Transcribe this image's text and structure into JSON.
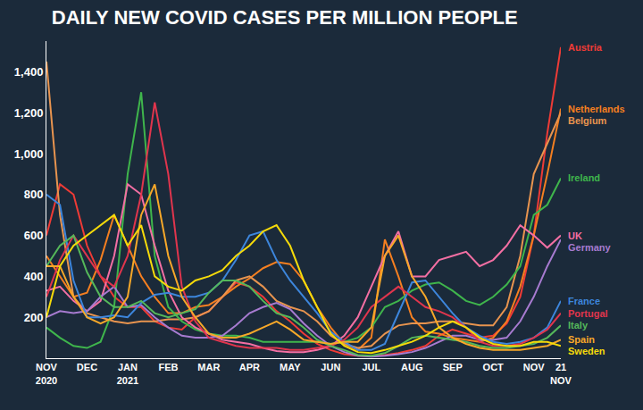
{
  "chart_data": {
    "type": "line",
    "title": "DAILY NEW COVID CASES PER MILLION PEOPLE",
    "categories": [
      "NOV 2020",
      null,
      null,
      "DEC",
      null,
      null,
      "JAN 2021",
      null,
      null,
      "FEB",
      null,
      null,
      "MAR",
      null,
      null,
      "APR",
      null,
      null,
      "MAY",
      null,
      null,
      "JUN",
      null,
      null,
      "JUL",
      null,
      null,
      "AUG",
      null,
      null,
      "SEP",
      null,
      null,
      "OCT",
      null,
      null,
      "NOV",
      null,
      "21 NOV"
    ],
    "series": [
      {
        "name": "Austria",
        "color": "#ef3b36",
        "values": [
          600,
          850,
          800,
          550,
          400,
          300,
          250,
          250,
          180,
          150,
          140,
          200,
          230,
          300,
          370,
          350,
          300,
          230,
          180,
          120,
          70,
          40,
          20,
          12,
          10,
          15,
          25,
          40,
          60,
          110,
          140,
          120,
          100,
          110,
          170,
          300,
          600,
          1100,
          1520
        ]
      },
      {
        "name": "Netherlands",
        "color": "#f57f20",
        "values": [
          500,
          400,
          300,
          320,
          480,
          700,
          550,
          400,
          300,
          220,
          220,
          250,
          260,
          300,
          350,
          390,
          440,
          470,
          460,
          380,
          250,
          150,
          70,
          40,
          100,
          580,
          400,
          200,
          130,
          120,
          100,
          90,
          80,
          100,
          180,
          350,
          600,
          900,
          1220
        ]
      },
      {
        "name": "Belgium",
        "color": "#e8944f",
        "values": [
          1450,
          700,
          300,
          220,
          200,
          180,
          170,
          180,
          180,
          190,
          190,
          200,
          230,
          300,
          380,
          400,
          350,
          280,
          250,
          230,
          180,
          110,
          70,
          50,
          60,
          120,
          160,
          170,
          170,
          180,
          180,
          170,
          160,
          160,
          250,
          500,
          900,
          1050,
          1200
        ]
      },
      {
        "name": "Ireland",
        "color": "#3fb54c",
        "values": [
          150,
          100,
          60,
          50,
          80,
          250,
          900,
          1300,
          500,
          250,
          180,
          140,
          120,
          110,
          110,
          100,
          80,
          80,
          80,
          80,
          80,
          70,
          80,
          100,
          150,
          250,
          280,
          330,
          360,
          370,
          330,
          280,
          260,
          300,
          360,
          450,
          700,
          750,
          880
        ]
      },
      {
        "name": "UK",
        "color": "#f36fa3",
        "values": [
          330,
          350,
          280,
          230,
          280,
          500,
          850,
          800,
          550,
          330,
          200,
          150,
          120,
          90,
          80,
          70,
          50,
          35,
          30,
          30,
          40,
          60,
          110,
          200,
          350,
          500,
          620,
          400,
          400,
          480,
          500,
          520,
          450,
          480,
          550,
          650,
          600,
          540,
          600
        ]
      },
      {
        "name": "Germany",
        "color": "#a77bd0",
        "values": [
          200,
          230,
          220,
          230,
          300,
          350,
          250,
          260,
          200,
          150,
          110,
          100,
          100,
          110,
          160,
          220,
          250,
          270,
          240,
          170,
          110,
          60,
          30,
          12,
          8,
          12,
          20,
          30,
          50,
          80,
          110,
          110,
          90,
          90,
          100,
          180,
          300,
          450,
          580
        ]
      },
      {
        "name": "France",
        "color": "#3d86dc",
        "values": [
          800,
          750,
          380,
          200,
          200,
          210,
          200,
          270,
          310,
          320,
          300,
          300,
          320,
          380,
          480,
          600,
          620,
          480,
          380,
          300,
          220,
          130,
          80,
          40,
          40,
          70,
          220,
          370,
          380,
          300,
          220,
          150,
          110,
          80,
          70,
          80,
          100,
          150,
          280
        ]
      },
      {
        "name": "Portugal",
        "color": "#e0354d",
        "values": [
          300,
          480,
          600,
          500,
          400,
          350,
          500,
          800,
          1250,
          900,
          350,
          180,
          100,
          80,
          60,
          50,
          50,
          50,
          40,
          40,
          50,
          60,
          90,
          150,
          250,
          300,
          350,
          300,
          250,
          230,
          200,
          150,
          80,
          60,
          60,
          70,
          100,
          140,
          220
        ]
      },
      {
        "name": "Italy",
        "color": "#55b85a",
        "values": [
          450,
          550,
          600,
          420,
          300,
          250,
          250,
          280,
          220,
          200,
          220,
          240,
          320,
          380,
          380,
          350,
          280,
          220,
          200,
          150,
          90,
          60,
          40,
          15,
          12,
          25,
          60,
          100,
          110,
          100,
          90,
          80,
          60,
          50,
          50,
          60,
          70,
          100,
          160
        ]
      },
      {
        "name": "Spain",
        "color": "#f7a829",
        "values": [
          450,
          450,
          300,
          200,
          170,
          200,
          300,
          700,
          850,
          500,
          300,
          200,
          120,
          100,
          100,
          120,
          150,
          180,
          140,
          90,
          80,
          70,
          80,
          80,
          150,
          500,
          600,
          400,
          300,
          150,
          100,
          70,
          50,
          40,
          40,
          40,
          50,
          60,
          90
        ]
      },
      {
        "name": "Sweden",
        "color": "#f5da0a",
        "values": [
          200,
          450,
          550,
          600,
          650,
          700,
          550,
          650,
          400,
          350,
          330,
          380,
          400,
          430,
          500,
          550,
          620,
          650,
          550,
          380,
          250,
          120,
          60,
          30,
          25,
          40,
          60,
          80,
          110,
          150,
          180,
          150,
          100,
          70,
          60,
          60,
          80,
          80,
          60
        ]
      }
    ],
    "ylim": [
      0,
      1550
    ],
    "yticks": [
      200,
      400,
      600,
      800,
      1000,
      1200,
      1400
    ],
    "grid": false
  }
}
